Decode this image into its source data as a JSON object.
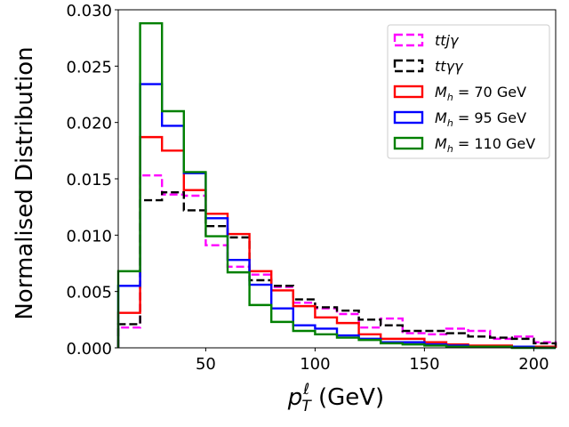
{
  "chart_data": {
    "type": "histogram",
    "title": "",
    "xlabel": "p_T^ℓ (GeV)",
    "xlabel_parts": {
      "base": "p",
      "sub": "T",
      "sup": "ℓ",
      "unit": " (GeV)"
    },
    "ylabel": "Normalised Distribution",
    "xlim": [
      10,
      210
    ],
    "ylim": [
      0,
      0.03
    ],
    "xticks": [
      50,
      100,
      150,
      200
    ],
    "yticks": [
      0.0,
      0.005,
      0.01,
      0.015,
      0.02,
      0.025,
      0.03
    ],
    "ytick_labels": [
      "0.000",
      "0.005",
      "0.010",
      "0.015",
      "0.020",
      "0.025",
      "0.030"
    ],
    "grid": false,
    "legend_position": "top-right",
    "bin_edges": [
      10,
      20,
      30,
      40,
      50,
      60,
      70,
      80,
      90,
      100,
      110,
      120,
      130,
      140,
      150,
      160,
      170,
      180,
      190,
      200,
      210
    ],
    "series": [
      {
        "name": "ttjγ",
        "color": "#ff00ff",
        "dash": "dashed",
        "values": [
          0.0018,
          0.0153,
          0.0136,
          0.0135,
          0.0091,
          0.0072,
          0.0065,
          0.0054,
          0.004,
          0.0035,
          0.003,
          0.0018,
          0.0026,
          0.0013,
          0.0012,
          0.0017,
          0.0015,
          0.0008,
          0.001,
          0.0005
        ]
      },
      {
        "name": "ttγγ",
        "color": "#000000",
        "dash": "dashed",
        "values": [
          0.0021,
          0.0131,
          0.0138,
          0.0122,
          0.0108,
          0.0098,
          0.006,
          0.0055,
          0.0043,
          0.0036,
          0.0033,
          0.0025,
          0.002,
          0.0015,
          0.0015,
          0.0013,
          0.001,
          0.0009,
          0.0008,
          0.0004
        ]
      },
      {
        "name": "M_h = 70 GeV",
        "label_parts": {
          "base": "M",
          "sub": "h",
          "rest": " = 70 GeV"
        },
        "color": "#ff0000",
        "dash": "solid",
        "values": [
          0.0031,
          0.0187,
          0.0175,
          0.014,
          0.0119,
          0.0101,
          0.0068,
          0.0051,
          0.0037,
          0.0027,
          0.0022,
          0.0012,
          0.0008,
          0.0008,
          0.0005,
          0.0003,
          0.0002,
          0.0002,
          0.0001,
          0.0001
        ]
      },
      {
        "name": "M_h = 95 GeV",
        "label_parts": {
          "base": "M",
          "sub": "h",
          "rest": " = 95  GeV"
        },
        "color": "#0000ff",
        "dash": "solid",
        "values": [
          0.0055,
          0.0234,
          0.0197,
          0.0155,
          0.0115,
          0.0078,
          0.0056,
          0.0035,
          0.002,
          0.0017,
          0.0011,
          0.0008,
          0.0005,
          0.0005,
          0.0003,
          0.0002,
          0.0001,
          0.0001,
          0.0001,
          0.0
        ]
      },
      {
        "name": "M_h = 110 GeV",
        "label_parts": {
          "base": "M",
          "sub": "h",
          "rest": " = 110  GeV"
        },
        "color": "#008000",
        "dash": "solid",
        "values": [
          0.0068,
          0.0288,
          0.021,
          0.0156,
          0.0099,
          0.0067,
          0.0038,
          0.0023,
          0.0015,
          0.0012,
          0.0009,
          0.0007,
          0.0004,
          0.0003,
          0.0002,
          0.0001,
          0.0001,
          0.0001,
          0.0,
          0.0
        ]
      }
    ]
  }
}
